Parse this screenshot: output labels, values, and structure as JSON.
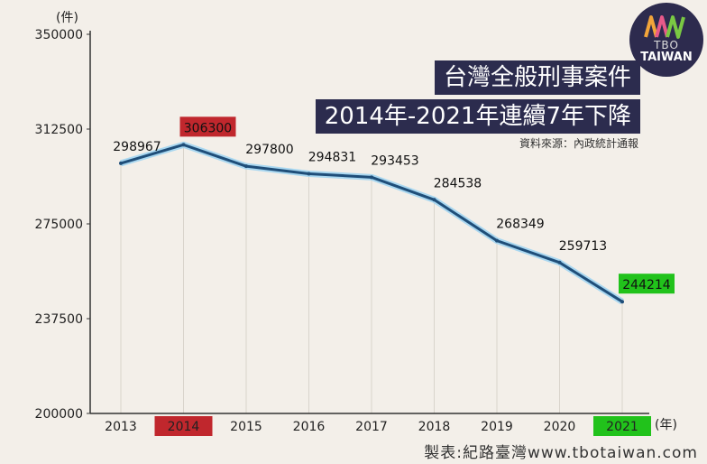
{
  "chart_data": {
    "type": "line",
    "title": "台灣全般刑事案件",
    "subtitle": "2014年-2021年連續7年下降",
    "source": "資料來源：內政統計通報",
    "xlabel": "(年)",
    "ylabel": "(件)",
    "ylim": [
      200000,
      350000
    ],
    "yticks": [
      "200000",
      "237500",
      "275000",
      "312500",
      "350000"
    ],
    "categories": [
      "2013",
      "2014",
      "2015",
      "2016",
      "2017",
      "2018",
      "2019",
      "2020",
      "2021"
    ],
    "values": [
      298967,
      306300,
      297800,
      294831,
      293453,
      284538,
      268349,
      259713,
      244214
    ],
    "highlight": [
      {
        "index": 1,
        "color": "#c0272d"
      },
      {
        "index": 8,
        "color": "#21c21b"
      }
    ],
    "line_color": "#1f4e79",
    "grid": "vertical"
  },
  "credit": "製表:紀路臺灣www.tbotaiwan.com",
  "logo": {
    "line1": "TBO",
    "line2": "TAIWAN",
    "colors": [
      "#f2a53a",
      "#e85a8a",
      "#7ac943"
    ]
  }
}
